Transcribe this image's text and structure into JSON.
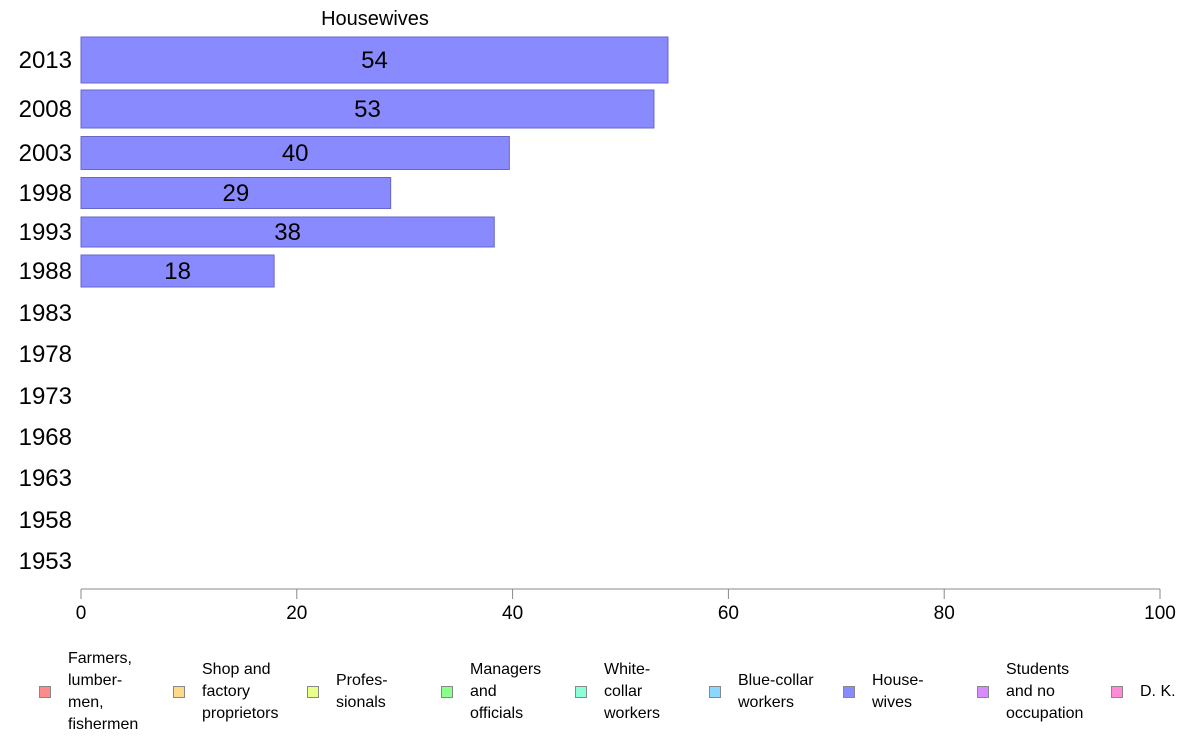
{
  "chart_data": {
    "type": "bar",
    "orientation": "horizontal",
    "title": "Housewives",
    "categories": [
      "2013",
      "2008",
      "2003",
      "1998",
      "1993",
      "1988",
      "1983",
      "1978",
      "1973",
      "1968",
      "1963",
      "1958",
      "1953"
    ],
    "values": [
      54.4,
      53.1,
      39.7,
      28.7,
      38.3,
      17.9,
      null,
      null,
      null,
      null,
      null,
      null,
      null
    ],
    "data_labels": [
      "54",
      "53",
      "40",
      "29",
      "38",
      "18",
      "",
      "",
      "",
      "",
      "",
      "",
      ""
    ],
    "xlim": [
      0,
      100
    ],
    "xticks": [
      "0",
      "20",
      "40",
      "60",
      "80",
      "100"
    ],
    "bar_color": "#8a8aff",
    "bar_edge_color": "#6666cc",
    "grid": false,
    "legend_position": "bottom",
    "legend": [
      {
        "label": "Farmers,\nlumber-\nmen,\nfishermen",
        "color": "#ff8a8a"
      },
      {
        "label": "Shop and\nfactory\nproprietors",
        "color": "#ffd88a"
      },
      {
        "label": "Profes-\nsionals",
        "color": "#e8ff8a"
      },
      {
        "label": "Managers\nand\nofficials",
        "color": "#8aff8a"
      },
      {
        "label": "White-\ncollar\nworkers",
        "color": "#8affd8"
      },
      {
        "label": "Blue-collar\nworkers",
        "color": "#8ad8ff"
      },
      {
        "label": "House-\nwives",
        "color": "#8a8aff"
      },
      {
        "label": "Students\nand no\noccupation",
        "color": "#d88aff"
      },
      {
        "label": "D. K.",
        "color": "#ff8ad8"
      }
    ]
  }
}
